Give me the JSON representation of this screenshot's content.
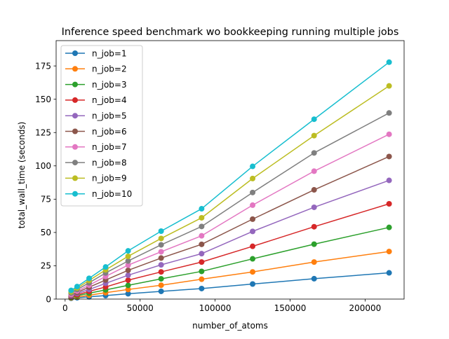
{
  "chart_data": {
    "type": "line",
    "title": "Inference speed benchmark wo bookkeeping running multiple jobs",
    "xlabel": "number_of_atoms",
    "ylabel": "total_wall_time (seconds)",
    "xlim": [
      -6000,
      226000
    ],
    "ylim": [
      0,
      194
    ],
    "xticks": [
      0,
      50000,
      100000,
      150000,
      200000
    ],
    "xtick_labels": [
      "0",
      "50000",
      "100000",
      "150000",
      "200000"
    ],
    "yticks": [
      0,
      25,
      50,
      75,
      100,
      125,
      150,
      175
    ],
    "ytick_labels": [
      "0",
      "25",
      "50",
      "75",
      "100",
      "125",
      "150",
      "175"
    ],
    "grid": false,
    "legend": "top-left",
    "x": [
      4000,
      8000,
      16000,
      27000,
      42000,
      64000,
      91000,
      125000,
      166000,
      216000
    ],
    "series": [
      {
        "name": "n_job=1",
        "color": "#1f77b4",
        "values": [
          0.6,
          1.0,
          1.7,
          2.6,
          4.0,
          5.8,
          7.9,
          11.3,
          15.3,
          19.7
        ]
      },
      {
        "name": "n_job=2",
        "color": "#ff7f0e",
        "values": [
          0.9,
          1.6,
          2.9,
          4.8,
          7.2,
          10.4,
          14.9,
          20.4,
          27.8,
          35.7
        ]
      },
      {
        "name": "n_job=3",
        "color": "#2ca02c",
        "values": [
          1.3,
          2.5,
          4.4,
          6.9,
          10.3,
          15.2,
          20.8,
          30.2,
          41.2,
          53.8
        ]
      },
      {
        "name": "n_job=4",
        "color": "#d62728",
        "values": [
          1.8,
          3.2,
          5.8,
          9.1,
          14.2,
          20.4,
          27.8,
          39.6,
          54.3,
          71.5
        ]
      },
      {
        "name": "n_job=5",
        "color": "#9467bd",
        "values": [
          2.3,
          4.2,
          7.2,
          11.8,
          17.9,
          25.7,
          34.1,
          50.8,
          68.9,
          89.1
        ]
      },
      {
        "name": "n_job=6",
        "color": "#8c564b",
        "values": [
          2.8,
          5.0,
          8.9,
          14.3,
          21.6,
          30.8,
          41.1,
          60.0,
          82.0,
          107.0
        ]
      },
      {
        "name": "n_job=7",
        "color": "#e377c2",
        "values": [
          3.4,
          6.0,
          10.4,
          17.0,
          25.5,
          35.5,
          47.5,
          70.5,
          96.0,
          123.7
        ]
      },
      {
        "name": "n_job=8",
        "color": "#7f7f7f",
        "values": [
          4.5,
          7.2,
          12.2,
          19.6,
          28.6,
          40.7,
          54.5,
          80.0,
          109.7,
          139.7
        ]
      },
      {
        "name": "n_job=9",
        "color": "#bcbd22",
        "values": [
          5.4,
          8.3,
          14.0,
          21.9,
          32.1,
          45.5,
          61.0,
          90.5,
          122.7,
          160.0
        ]
      },
      {
        "name": "n_job=10",
        "color": "#17becf",
        "values": [
          6.5,
          9.4,
          15.6,
          24.1,
          36.2,
          51.0,
          67.8,
          99.6,
          135.0,
          177.8
        ]
      }
    ]
  }
}
